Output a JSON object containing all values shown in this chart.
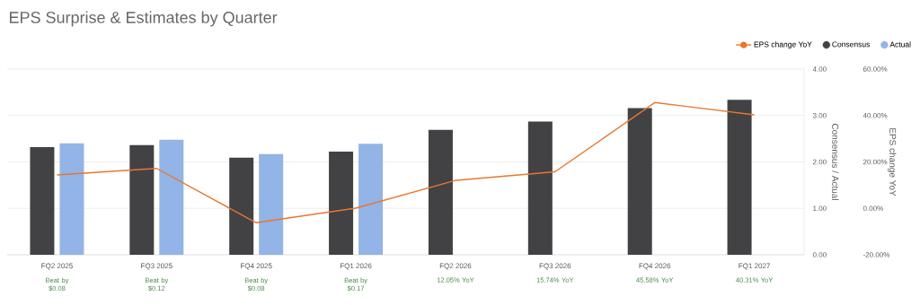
{
  "chart_data": {
    "type": "bar",
    "title": "EPS Surprise & Estimates by Quarter",
    "categories": [
      "FQ2 2025",
      "FQ3 2025",
      "FQ4 2025",
      "FQ1 2026",
      "FQ2 2026",
      "FQ3 2026",
      "FQ4 2026",
      "FQ1 2027"
    ],
    "series": [
      {
        "name": "EPS change YoY",
        "type": "line",
        "axis": "y2",
        "color": "#e8772e",
        "values": [
          14.4,
          17.2,
          -6.2,
          0.1,
          12.05,
          15.74,
          45.58,
          40.31
        ]
      },
      {
        "name": "Consensus",
        "color": "#424245",
        "values": [
          2.32,
          2.36,
          2.09,
          2.22,
          2.69,
          2.87,
          3.16,
          3.34
        ]
      },
      {
        "name": "Actual",
        "color": "#92b4e6",
        "values": [
          2.4,
          2.48,
          2.17,
          2.39,
          null,
          null,
          null,
          null
        ]
      }
    ],
    "ylim": [
      0,
      4
    ],
    "yticks": [
      {
        "value": 0,
        "label": "0.00"
      },
      {
        "value": 1,
        "label": "1.00"
      },
      {
        "value": 2,
        "label": "2.00"
      },
      {
        "value": 3,
        "label": "3.00"
      },
      {
        "value": 4,
        "label": "4.00"
      }
    ],
    "y2lim": [
      -20,
      60
    ],
    "y2ticks": [
      {
        "value": -20,
        "label": "-20.00%"
      },
      {
        "value": 0,
        "label": "0.00%"
      },
      {
        "value": 20,
        "label": "20.00%"
      },
      {
        "value": 40,
        "label": "40.00%"
      },
      {
        "value": 60,
        "label": "60.00%"
      }
    ],
    "ylabel": "Consensus / Actual",
    "y2label": "EPS change YoY",
    "grid": "y",
    "legend": "top right",
    "annotations": [
      "Beat by $0.08",
      "Beat by $0.12",
      "Beat by $0.08",
      "Beat by $0.17",
      "12.05% YoY",
      "15.74% YoY",
      "45.58% YoY",
      "40.31% YoY"
    ]
  }
}
